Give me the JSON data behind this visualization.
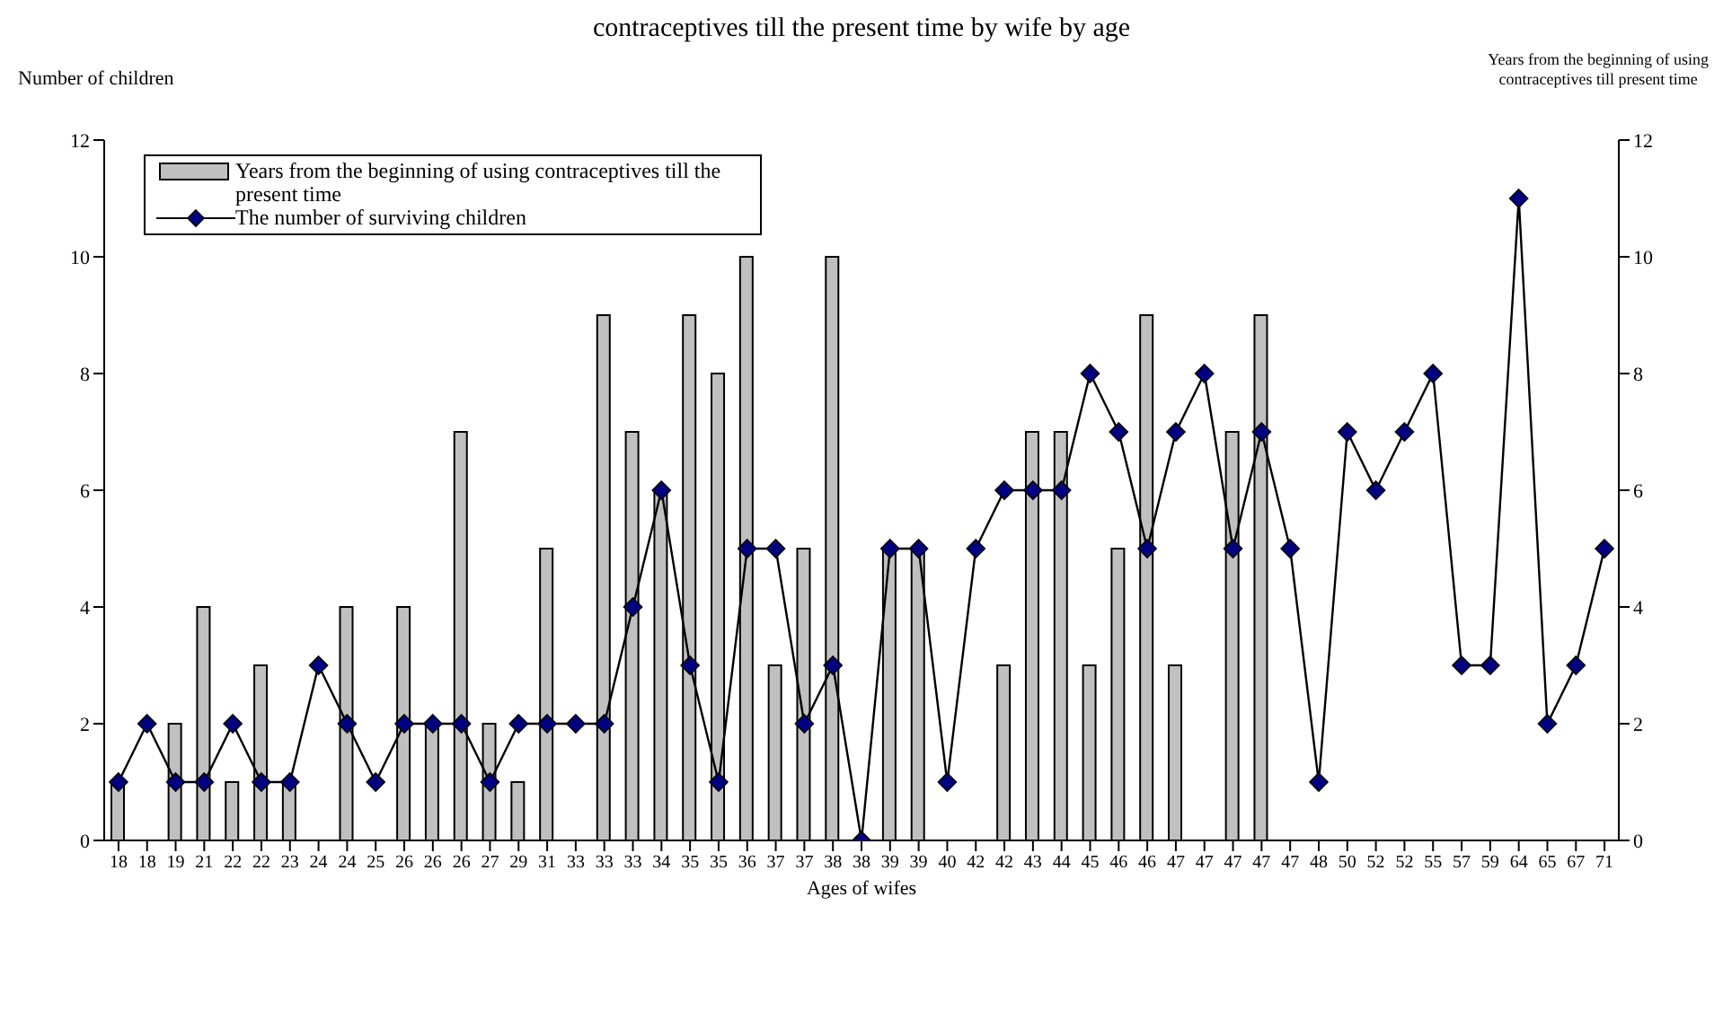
{
  "chart_data": {
    "type": "bar",
    "title": "contraceptives till the present time by wife by age",
    "xlabel": "Ages of wifes",
    "ylabel": "Number of children",
    "y2label": "Years from the beginning of using\ncontraceptives till present time",
    "categories": [
      "18",
      "18",
      "19",
      "21",
      "22",
      "22",
      "23",
      "24",
      "24",
      "25",
      "26",
      "26",
      "26",
      "27",
      "29",
      "31",
      "33",
      "33",
      "33",
      "34",
      "35",
      "35",
      "36",
      "37",
      "37",
      "38",
      "38",
      "39",
      "39",
      "40",
      "42",
      "42",
      "43",
      "44",
      "45",
      "46",
      "46",
      "47",
      "47",
      "47",
      "47",
      "47",
      "48",
      "50",
      "52",
      "52",
      "55",
      "57",
      "59",
      "64",
      "65",
      "67",
      "71"
    ],
    "series": [
      {
        "name": "Years from the beginning of using contraceptives till the present time",
        "color": "#c0c0c0",
        "values": [
          1,
          null,
          2,
          4,
          1,
          3,
          1,
          null,
          4,
          null,
          4,
          2,
          7,
          2,
          1,
          5,
          null,
          9,
          7,
          6,
          9,
          8,
          10,
          3,
          5,
          10,
          null,
          5,
          5,
          null,
          null,
          3,
          7,
          7,
          3,
          5,
          9,
          3,
          null,
          7,
          9,
          null,
          null,
          null,
          null,
          null,
          null,
          null,
          null,
          null,
          null,
          null,
          null
        ]
      },
      {
        "name": "The number of surviving children",
        "type": "line",
        "color": "#000000",
        "marker": "diamond",
        "values": [
          1,
          2,
          1,
          1,
          2,
          1,
          1,
          3,
          2,
          1,
          2,
          2,
          2,
          1,
          2,
          2,
          2,
          2,
          4,
          6,
          3,
          1,
          5,
          5,
          2,
          3,
          0,
          5,
          5,
          1,
          5,
          6,
          6,
          6,
          8,
          7,
          5,
          7,
          8,
          5,
          7,
          5,
          1,
          7,
          6,
          7,
          8,
          3,
          3,
          11,
          2,
          3,
          5
        ]
      }
    ],
    "ylim": [
      0,
      12
    ],
    "yticks": [
      0,
      2,
      4,
      6,
      8,
      10,
      12
    ],
    "y2lim": [
      0,
      12
    ],
    "y2ticks": [
      0,
      2,
      4,
      6,
      8,
      10,
      12
    ],
    "legend": "top left"
  }
}
